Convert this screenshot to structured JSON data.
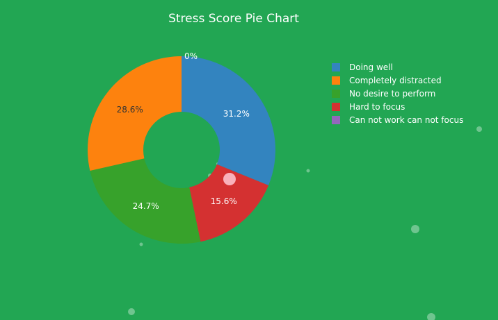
{
  "chart_data": {
    "type": "pie",
    "title": "Stress Score Pie Chart",
    "hole": true,
    "legend_position": "top-right",
    "slices": [
      {
        "label": "Doing well",
        "percent_label": "31.2%",
        "value": 31.2,
        "color": "#3384bf"
      },
      {
        "label": "Hard to focus",
        "percent_label": "15.6%",
        "value": 15.6,
        "color": "#d43131"
      },
      {
        "label": "No desire to perform",
        "percent_label": "24.7%",
        "value": 24.7,
        "color": "#37a22b"
      },
      {
        "label": "Completely distracted",
        "percent_label": "28.6%",
        "value": 28.6,
        "color": "#fd820e"
      },
      {
        "label": "Can not work can not focus",
        "percent_label": "0%",
        "value": 0,
        "color": "#9467bd"
      }
    ],
    "legend": [
      {
        "label": "Doing well",
        "color": "#3384bf"
      },
      {
        "label": "Completely distracted",
        "color": "#fd820e"
      },
      {
        "label": "No desire to perform",
        "color": "#37a22b"
      },
      {
        "label": "Hard to focus",
        "color": "#d43131"
      },
      {
        "label": "Can not work can not focus",
        "color": "#9467bd"
      }
    ]
  },
  "colors": {
    "background": "#22a653",
    "text": "#ffffff",
    "dark_label": "#333333"
  }
}
